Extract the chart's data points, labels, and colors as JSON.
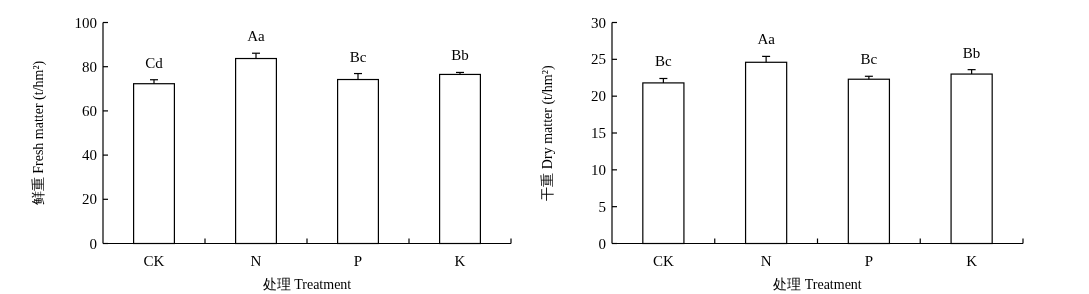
{
  "chart_data": [
    {
      "type": "bar",
      "categories": [
        "CK",
        "N",
        "P",
        "K"
      ],
      "values": [
        72.3,
        83.7,
        74.2,
        76.5
      ],
      "errors": [
        [
          72.3,
          74.1
        ],
        [
          83.7,
          86.1
        ],
        [
          74.2,
          76.9
        ],
        [
          76.5,
          77.4
        ]
      ],
      "color": "#ffffff",
      "ylim": [
        0,
        100
      ],
      "yticks": [
        0,
        20,
        40,
        60,
        80,
        100
      ],
      "xlabel": "处理 Treatment",
      "ylabel": "鲜重 Fresh matter (t/hm²)",
      "grid": false,
      "annotations": [
        {
          "text": "Cd",
          "x": "CK",
          "y": 74.1
        },
        {
          "text": "Aa",
          "x": "N",
          "y": 86.1
        },
        {
          "text": "Bc",
          "x": "P",
          "y": 76.9
        },
        {
          "text": "Bb",
          "x": "K",
          "y": 77.4
        }
      ]
    },
    {
      "type": "bar",
      "categories": [
        "CK",
        "N",
        "P",
        "K"
      ],
      "values": [
        21.8,
        24.6,
        22.3,
        23.0
      ],
      "errors": [
        [
          21.8,
          22.4
        ],
        [
          24.6,
          25.4
        ],
        [
          22.3,
          22.7
        ],
        [
          23.0,
          23.6
        ]
      ],
      "color": "#ffffff",
      "ylim": [
        0,
        30
      ],
      "yticks": [
        0,
        5,
        10,
        15,
        20,
        25,
        30
      ],
      "xlabel": "处理 Treatment",
      "ylabel": "干重 Dry matter (t/hm²)",
      "grid": false,
      "annotations": [
        {
          "text": "Bc",
          "x": "CK",
          "y": 22.4
        },
        {
          "text": "Aa",
          "x": "N",
          "y": 25.4
        },
        {
          "text": "Bc",
          "x": "P",
          "y": 22.7
        },
        {
          "text": "Bb",
          "x": "K",
          "y": 23.6
        }
      ]
    }
  ]
}
